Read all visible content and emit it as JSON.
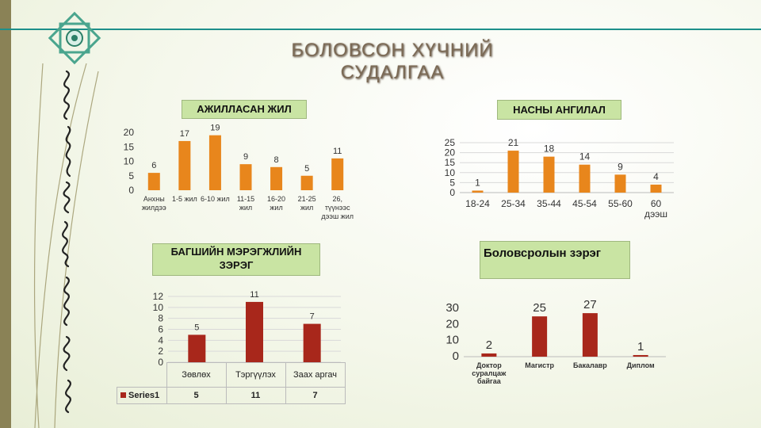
{
  "title": "БОЛОВСОН ХҮЧНИЙ СУДАЛГАА",
  "colors": {
    "orange": "#e8861c",
    "red": "#a8271b",
    "teal": "#1d8f8a",
    "box": "#c9e4a3"
  },
  "chart_data": [
    {
      "type": "bar",
      "title": "АЖИЛЛАСАН ЖИЛ",
      "categories": [
        "Анхны жилдээ",
        "1-5 жил",
        "6-10 жил",
        "11-15 жил",
        "16-20 жил",
        "21-25 жил",
        "26, түүнээс дээш жил"
      ],
      "values": [
        6,
        17,
        19,
        9,
        8,
        5,
        11
      ],
      "yticks": [
        "0",
        "5",
        "10",
        "15",
        "20"
      ],
      "ylim": [
        0,
        20
      ],
      "color": "#e8861c"
    },
    {
      "type": "bar",
      "title": "НАСНЫ АНГИЛАЛ",
      "categories": [
        "18-24",
        "25-34",
        "35-44",
        "45-54",
        "55-60",
        "60 дээш"
      ],
      "values": [
        1,
        21,
        18,
        14,
        9,
        4
      ],
      "yticks": [
        "0",
        "5",
        "10",
        "15",
        "20",
        "25"
      ],
      "ylim": [
        0,
        25
      ],
      "grid": true,
      "color": "#e8861c"
    },
    {
      "type": "bar",
      "title": "БАГШИЙН МЭРЭГЖЛИЙН ЗЭРЭГ",
      "categories": [
        "Зөвлөх",
        "Тэргүүлэх",
        "Заах аргач"
      ],
      "series": [
        {
          "name": "Series1",
          "values": [
            5,
            11,
            7
          ]
        }
      ],
      "yticks": [
        "0",
        "2",
        "4",
        "6",
        "8",
        "10",
        "12"
      ],
      "ylim": [
        0,
        12
      ],
      "grid": true,
      "data_table": true,
      "color": "#a8271b"
    },
    {
      "type": "bar",
      "title": "Боловсролын зэрэг",
      "categories": [
        "Доктор суралцаж байгаа",
        "Магистр",
        "Бакалавр",
        "Диплом"
      ],
      "values": [
        2,
        25,
        27,
        1
      ],
      "yticks": [
        "0",
        "10",
        "20",
        "30"
      ],
      "ylim": [
        0,
        30
      ],
      "color": "#a8271b"
    }
  ]
}
